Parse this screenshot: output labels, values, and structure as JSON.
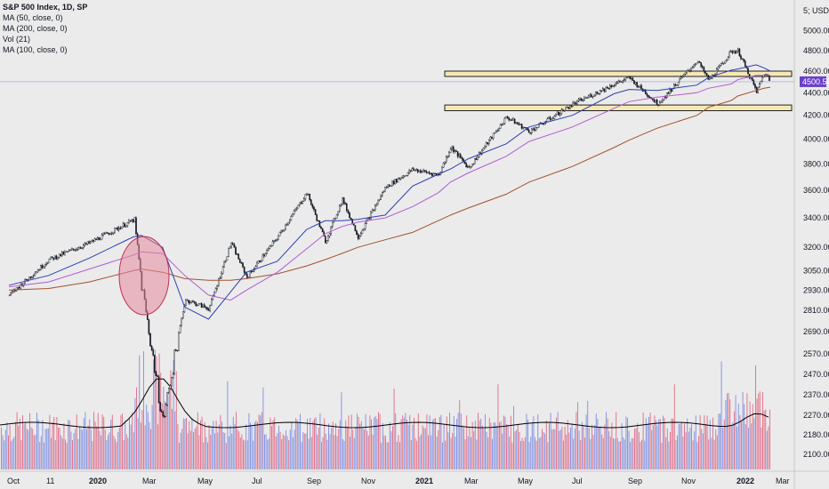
{
  "legend": {
    "title": "S&P 500 Index, 1D, SP",
    "lines": [
      "MA (50, close, 0)",
      "MA (200, close, 0)",
      "Vol (21)",
      "MA (100, close, 0)"
    ]
  },
  "currency": "5; USD ▾",
  "last_price": "4500.54",
  "colors": {
    "background": "#ebebeb",
    "up_candle": "#131722",
    "down_candle": "#131722",
    "ma50": "#2b3fb0",
    "ma100": "#b05ed0",
    "ma200": "#a0522d",
    "vol_ma": "#000000",
    "vol_up": "#7d8ee0",
    "vol_down": "#e06a84",
    "zone_fill": "#f6e8b4",
    "zone_border": "#222222",
    "circle_fill": "#e38a9c",
    "circle_stroke": "#c0304e",
    "price_tag": "#6a3fc9"
  },
  "chart_data": {
    "type": "candlestick",
    "y_ticks": [
      "5; USD",
      "5000.00",
      "4800.00",
      "4600.00",
      "4400.00",
      "4200.00",
      "4000.00",
      "3800.00",
      "3600.00",
      "3400.00",
      "3200.00",
      "3050.00",
      "2930.00",
      "2810.00",
      "2690.00",
      "2570.00",
      "2470.00",
      "2370.00",
      "2270.00",
      "2180.00",
      "2100.00"
    ],
    "x_ticks": [
      "Oct",
      "11",
      "2020",
      "Mar",
      "May",
      "Jul",
      "Sep",
      "Nov",
      "2021",
      "Mar",
      "May",
      "Jul",
      "Sep",
      "Nov",
      "2022",
      "Mar"
    ],
    "x_ticks_bold": [
      "2020",
      "2021",
      "2022"
    ],
    "y_scale": "log",
    "price_series": {
      "dates": [
        "2019-10-01",
        "2019-11-15",
        "2019-12-31",
        "2020-02-19",
        "2020-02-28",
        "2020-03-23",
        "2020-04-17",
        "2020-05-14",
        "2020-06-08",
        "2020-06-26",
        "2020-07-31",
        "2020-09-02",
        "2020-09-23",
        "2020-10-12",
        "2020-10-30",
        "2020-11-30",
        "2020-12-31",
        "2021-01-29",
        "2021-02-12",
        "2021-03-04",
        "2021-04-16",
        "2021-05-12",
        "2021-06-30",
        "2021-08-16",
        "2021-09-02",
        "2021-10-04",
        "2021-11-18",
        "2021-12-01",
        "2021-12-27",
        "2022-01-03",
        "2022-01-24",
        "2022-02-02",
        "2022-02-09"
      ],
      "close": [
        2900,
        3120,
        3230,
        3386,
        2954,
        2237,
        2874,
        2820,
        3232,
        3009,
        3271,
        3580,
        3237,
        3535,
        3270,
        3622,
        3756,
        3714,
        3935,
        3768,
        4185,
        4063,
        4297,
        4480,
        4537,
        4300,
        4700,
        4513,
        4791,
        4796,
        4410,
        4590,
        4500
      ]
    },
    "ma50": [
      2960,
      3020,
      3130,
      3270,
      3280,
      3200,
      2830,
      2760,
      2920,
      3040,
      3110,
      3320,
      3380,
      3380,
      3390,
      3420,
      3630,
      3720,
      3760,
      3840,
      3960,
      4100,
      4200,
      4390,
      4430,
      4420,
      4470,
      4540,
      4610,
      4620,
      4660,
      4630,
      4600
    ],
    "ma100": [
      2950,
      2980,
      3060,
      3150,
      3170,
      3160,
      3020,
      2900,
      2870,
      2930,
      3040,
      3190,
      3290,
      3340,
      3370,
      3400,
      3480,
      3580,
      3660,
      3730,
      3860,
      3980,
      4100,
      4260,
      4320,
      4360,
      4400,
      4440,
      4480,
      4520,
      4560,
      4560,
      4560
    ],
    "ma200": [
      2930,
      2940,
      2980,
      3050,
      3060,
      3040,
      3000,
      2990,
      2990,
      3000,
      3030,
      3080,
      3120,
      3160,
      3200,
      3250,
      3300,
      3380,
      3420,
      3470,
      3570,
      3660,
      3780,
      3930,
      3990,
      4090,
      4200,
      4270,
      4330,
      4370,
      4420,
      4440,
      4450
    ]
  }
}
